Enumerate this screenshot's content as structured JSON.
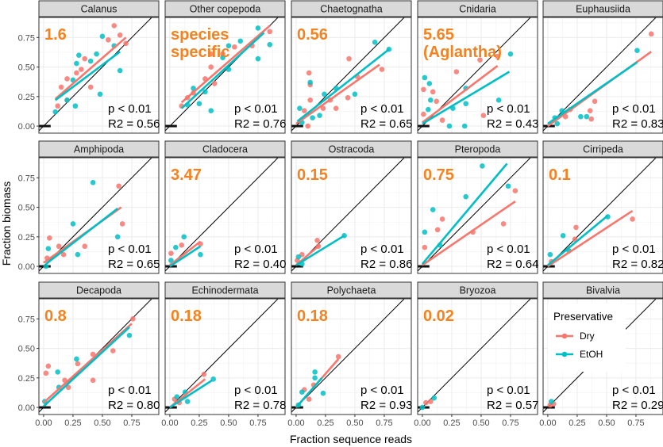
{
  "chart_data": {
    "type": "scatter",
    "xlabel": "Fraction sequence reads",
    "ylabel": "Fraction biomass",
    "xlim": [
      -0.04,
      0.98
    ],
    "ylim": [
      -0.06,
      0.92
    ],
    "xticks": [
      "0.00",
      "0.25",
      "0.50",
      "0.75"
    ],
    "yticks": [
      "0.00",
      "0.25",
      "0.50",
      "0.75"
    ],
    "xtick_values": [
      0,
      0.25,
      0.5,
      0.75
    ],
    "ytick_values": [
      0,
      0.25,
      0.5,
      0.75
    ],
    "grid": true,
    "reference_line": "y = x",
    "legend": {
      "title": "Preservative",
      "placement": "inside Bivalvia panel",
      "entries": [
        "Dry",
        "EtOH"
      ]
    },
    "colors": {
      "Dry": "#f8766d",
      "EtOH": "#00bfc4",
      "annotation": "#f5821f"
    },
    "panels": [
      {
        "name": "Calanus",
        "annotation": [
          "1.6"
        ],
        "p": "p < 0.01",
        "r2": "R2 = 0.56",
        "dry": [
          [
            0.6,
            0.85
          ],
          [
            0.65,
            0.77
          ],
          [
            0.55,
            0.73
          ],
          [
            0.7,
            0.7
          ],
          [
            0.35,
            0.57
          ],
          [
            0.32,
            0.48
          ],
          [
            0.2,
            0.4
          ],
          [
            0.28,
            0.45
          ],
          [
            0.4,
            0.33
          ],
          [
            0.15,
            0.33
          ],
          [
            0.2,
            0.22
          ],
          [
            0.12,
            0.17
          ]
        ],
        "etoh": [
          [
            0.5,
            0.76
          ],
          [
            0.6,
            0.68
          ],
          [
            0.45,
            0.61
          ],
          [
            0.3,
            0.6
          ],
          [
            0.4,
            0.55
          ],
          [
            0.28,
            0.53
          ],
          [
            0.25,
            0.39
          ],
          [
            0.65,
            0.47
          ],
          [
            0.48,
            0.27
          ],
          [
            0.27,
            0.17
          ],
          [
            0.1,
            0.12
          ],
          [
            0.2,
            0.22
          ]
        ],
        "dry_fit": [
          [
            0.1,
            0.23
          ],
          [
            0.7,
            0.75
          ]
        ],
        "etoh_fit": [
          [
            0.1,
            0.22
          ],
          [
            0.65,
            0.63
          ]
        ]
      },
      {
        "name": "Other copepoda",
        "annotation": [
          "species",
          "specific"
        ],
        "p": "p < 0.01",
        "r2": "R2 = 0.76",
        "dry": [
          [
            0.85,
            0.8
          ],
          [
            0.7,
            0.68
          ],
          [
            0.55,
            0.67
          ],
          [
            0.35,
            0.61
          ],
          [
            0.45,
            0.61
          ],
          [
            0.35,
            0.5
          ],
          [
            0.3,
            0.4
          ],
          [
            0.38,
            0.36
          ],
          [
            0.1,
            0.17
          ],
          [
            0.2,
            0.28
          ],
          [
            0.15,
            0.24
          ]
        ],
        "etoh": [
          [
            0.75,
            0.83
          ],
          [
            0.85,
            0.69
          ],
          [
            0.6,
            0.72
          ],
          [
            0.5,
            0.68
          ],
          [
            0.45,
            0.58
          ],
          [
            0.5,
            0.48
          ],
          [
            0.75,
            0.57
          ],
          [
            0.2,
            0.32
          ],
          [
            0.3,
            0.29
          ],
          [
            0.25,
            0.19
          ],
          [
            0.35,
            0.13
          ],
          [
            0.15,
            0.18
          ]
        ],
        "dry_fit": [
          [
            0.1,
            0.2
          ],
          [
            0.85,
            0.85
          ]
        ],
        "etoh_fit": [
          [
            0.1,
            0.15
          ],
          [
            0.8,
            0.79
          ]
        ]
      },
      {
        "name": "Chaetognatha",
        "annotation": [
          "0.56"
        ],
        "p": "p < 0.01",
        "r2": "R2 = 0.65",
        "dry": [
          [
            0.45,
            0.57
          ],
          [
            0.11,
            0.45
          ],
          [
            0.12,
            0.35
          ],
          [
            0.52,
            0.42
          ],
          [
            0.73,
            0.48
          ],
          [
            0.44,
            0.24
          ],
          [
            0.12,
            0.22
          ],
          [
            0.29,
            0.22
          ],
          [
            0.23,
            0.15
          ],
          [
            0.34,
            0.15
          ],
          [
            0.1,
            0.0
          ],
          [
            0.07,
            0.13
          ]
        ],
        "etoh": [
          [
            0.67,
            0.71
          ],
          [
            0.79,
            0.65
          ],
          [
            0.12,
            0.37
          ],
          [
            0.24,
            0.27
          ],
          [
            0.34,
            0.32
          ],
          [
            0.5,
            0.27
          ],
          [
            0.2,
            0.09
          ],
          [
            0.14,
            0.07
          ],
          [
            0.03,
            0.15
          ],
          [
            0.05,
            0.03
          ]
        ],
        "dry_fit": [
          [
            0.0,
            0.02
          ],
          [
            0.71,
            0.52
          ]
        ],
        "etoh_fit": [
          [
            0.01,
            0.04
          ],
          [
            0.79,
            0.65
          ]
        ]
      },
      {
        "name": "Cnidaria",
        "annotation": [
          "5.65",
          "(Aglantha)"
        ],
        "p": "p < 0.01",
        "r2": "R2 = 0.43",
        "dry": [
          [
            0.64,
            0.59
          ],
          [
            0.49,
            0.56
          ],
          [
            0.29,
            0.46
          ],
          [
            0.01,
            0.31
          ],
          [
            0.09,
            0.29
          ],
          [
            0.12,
            0.21
          ],
          [
            0.52,
            0.09
          ],
          [
            0.17,
            0.05
          ],
          [
            0.01,
            0.1
          ]
        ],
        "etoh": [
          [
            0.75,
            0.61
          ],
          [
            0.02,
            0.41
          ],
          [
            0.06,
            0.36
          ],
          [
            0.37,
            0.32
          ],
          [
            0.07,
            0.22
          ],
          [
            0.37,
            0.19
          ],
          [
            0.65,
            0.22
          ],
          [
            0.26,
            0.15
          ],
          [
            0.05,
            0.14
          ],
          [
            0.23,
            0.0
          ],
          [
            0.36,
            0.0
          ]
        ],
        "dry_fit": [
          [
            0.0,
            0.03
          ],
          [
            0.64,
            0.51
          ]
        ],
        "etoh_fit": [
          [
            0.0,
            0.02
          ],
          [
            0.74,
            0.46
          ]
        ]
      },
      {
        "name": "Euphausiida",
        "annotation": [],
        "p": "p < 0.01",
        "r2": "R2 = 0.83",
        "dry": [
          [
            0.88,
            0.78
          ],
          [
            0.4,
            0.21
          ],
          [
            0.36,
            0.13
          ],
          [
            0.37,
            0.06
          ],
          [
            0.19,
            0.14
          ],
          [
            0.15,
            0.08
          ]
        ],
        "etoh": [
          [
            0.76,
            0.64
          ],
          [
            0.28,
            0.08
          ],
          [
            0.33,
            0.08
          ],
          [
            0.12,
            0.13
          ],
          [
            0.06,
            0.07
          ],
          [
            0.08,
            0.02
          ]
        ],
        "dry_fit": [
          [
            0.0,
            0.0
          ],
          [
            0.88,
            0.63
          ]
        ],
        "etoh_fit": [
          [
            0.0,
            0.02
          ],
          [
            0.76,
            0.54
          ]
        ]
      },
      {
        "name": "Amphipoda",
        "annotation": [],
        "p": "p < 0.01",
        "r2": "R2 = 0.65",
        "dry": [
          [
            0.64,
            0.68
          ],
          [
            0.67,
            0.36
          ],
          [
            0.05,
            0.24
          ],
          [
            0.35,
            0.17
          ],
          [
            0.13,
            0.17
          ],
          [
            0.17,
            0.1
          ],
          [
            0.03,
            0.07
          ]
        ],
        "etoh": [
          [
            0.42,
            0.71
          ],
          [
            0.25,
            0.36
          ],
          [
            0.63,
            0.25
          ],
          [
            0.04,
            0.15
          ],
          [
            0.29,
            0.1
          ],
          [
            0.02,
            0.0
          ]
        ],
        "dry_fit": [
          [
            0.0,
            0.03
          ],
          [
            0.66,
            0.5
          ]
        ],
        "etoh_fit": [
          [
            0.02,
            0.02
          ],
          [
            0.63,
            0.49
          ]
        ]
      },
      {
        "name": "Cladocera",
        "annotation": [
          "3.47"
        ],
        "p": "p < 0.01",
        "r2": "R2 = 0.40",
        "dry": [
          [
            0.1,
            0.18
          ],
          [
            0.26,
            0.19
          ],
          [
            0.01,
            0.11
          ]
        ],
        "etoh": [
          [
            0.12,
            0.25
          ],
          [
            0.05,
            0.16
          ],
          [
            0.26,
            0.1
          ],
          [
            0.01,
            0.05
          ]
        ],
        "dry_fit": [
          [
            0.0,
            0.01
          ],
          [
            0.26,
            0.21
          ]
        ],
        "etoh_fit": [
          [
            0.0,
            0.0
          ],
          [
            0.26,
            0.17
          ]
        ]
      },
      {
        "name": "Ostracoda",
        "annotation": [
          "0.15"
        ],
        "p": "p < 0.01",
        "r2": "R2 = 0.86",
        "dry": [
          [
            0.18,
            0.22
          ],
          [
            0.19,
            0.17
          ],
          [
            0.05,
            0.1
          ],
          [
            0.01,
            0.05
          ]
        ],
        "etoh": [
          [
            0.41,
            0.26
          ],
          [
            0.02,
            0.08
          ],
          [
            0.05,
            0.02
          ]
        ],
        "dry_fit": [
          [
            0.0,
            0.01
          ],
          [
            0.2,
            0.18
          ]
        ],
        "etoh_fit": [
          [
            0.0,
            0.01
          ],
          [
            0.41,
            0.26
          ]
        ]
      },
      {
        "name": "Pteropoda",
        "annotation": [
          "0.75"
        ],
        "p": "p < 0.01",
        "r2": "R2 = 0.64",
        "dry": [
          [
            0.79,
            0.64
          ],
          [
            0.17,
            0.4
          ],
          [
            0.13,
            0.31
          ],
          [
            0.43,
            0.29
          ],
          [
            0.69,
            0.36
          ],
          [
            0.02,
            0.16
          ]
        ],
        "etoh": [
          [
            0.51,
            0.85
          ],
          [
            0.73,
            0.68
          ],
          [
            0.37,
            0.59
          ],
          [
            0.09,
            0.48
          ],
          [
            0.02,
            0.29
          ],
          [
            0.15,
            0.18
          ]
        ],
        "dry_fit": [
          [
            0.0,
            0.01
          ],
          [
            0.79,
            0.55
          ]
        ],
        "etoh_fit": [
          [
            0.0,
            0.02
          ],
          [
            0.72,
            0.87
          ]
        ]
      },
      {
        "name": "Cirripeda",
        "annotation": [
          "0.1"
        ],
        "p": "p < 0.01",
        "r2": "R2 = 0.82",
        "dry": [
          [
            0.72,
            0.4
          ],
          [
            0.24,
            0.33
          ],
          [
            0.23,
            0.23
          ],
          [
            0.03,
            0.04
          ]
        ],
        "etoh": [
          [
            0.51,
            0.42
          ],
          [
            0.13,
            0.26
          ],
          [
            0.18,
            0.13
          ],
          [
            0.02,
            0.1
          ]
        ],
        "dry_fit": [
          [
            0.0,
            0.0
          ],
          [
            0.72,
            0.47
          ]
        ],
        "etoh_fit": [
          [
            0.0,
            0.01
          ],
          [
            0.51,
            0.43
          ]
        ]
      },
      {
        "name": "Decapoda",
        "annotation": [
          "0.8"
        ],
        "p": "p < 0.01",
        "r2": "R2 = 0.80",
        "dry": [
          [
            0.76,
            0.75
          ],
          [
            0.42,
            0.45
          ],
          [
            0.59,
            0.48
          ],
          [
            0.29,
            0.37
          ],
          [
            0.04,
            0.35
          ],
          [
            0.02,
            0.29
          ],
          [
            0.42,
            0.23
          ],
          [
            0.18,
            0.23
          ],
          [
            0.21,
            0.17
          ]
        ],
        "etoh": [
          [
            0.73,
            0.61
          ],
          [
            0.28,
            0.41
          ],
          [
            0.12,
            0.3
          ],
          [
            0.13,
            0.17
          ],
          [
            0.01,
            0.05
          ]
        ],
        "dry_fit": [
          [
            0.0,
            0.04
          ],
          [
            0.75,
            0.71
          ]
        ],
        "etoh_fit": [
          [
            0.0,
            0.01
          ],
          [
            0.73,
            0.68
          ]
        ]
      },
      {
        "name": "Echinodermata",
        "annotation": [
          "0.18"
        ],
        "p": "p < 0.01",
        "r2": "R2 = 0.78",
        "dry": [
          [
            0.29,
            0.28
          ],
          [
            0.04,
            0.07
          ],
          [
            0.08,
            0.04
          ]
        ],
        "etoh": [
          [
            0.37,
            0.24
          ],
          [
            0.13,
            0.13
          ],
          [
            0.15,
            0.05
          ],
          [
            0.06,
            0.09
          ]
        ],
        "dry_fit": [
          [
            0.0,
            0.0
          ],
          [
            0.3,
            0.24
          ]
        ],
        "etoh_fit": [
          [
            0.0,
            0.0
          ],
          [
            0.36,
            0.23
          ]
        ]
      },
      {
        "name": "Polychaeta",
        "annotation": [
          "0.18"
        ],
        "p": "p < 0.01",
        "r2": "R2 = 0.93",
        "dry": [
          [
            0.36,
            0.43
          ],
          [
            0.07,
            0.15
          ],
          [
            0.15,
            0.19
          ],
          [
            0.11,
            0.07
          ]
        ],
        "etoh": [
          [
            0.16,
            0.3
          ],
          [
            0.16,
            0.25
          ],
          [
            0.23,
            0.12
          ],
          [
            0.05,
            0.13
          ],
          [
            0.02,
            0.02
          ]
        ],
        "dry_fit": [
          [
            0.0,
            0.0
          ],
          [
            0.36,
            0.41
          ]
        ],
        "etoh_fit": [
          [
            0.0,
            0.0
          ],
          [
            0.22,
            0.25
          ]
        ]
      },
      {
        "name": "Bryozoa",
        "annotation": [
          "0.02"
        ],
        "p": "p < 0.01",
        "r2": "R2 = 0.57",
        "dry": [
          [
            0.07,
            0.05
          ],
          [
            0.03,
            0.04
          ]
        ],
        "etoh": [
          [
            0.1,
            0.08
          ],
          [
            0.0,
            0.0
          ]
        ],
        "dry_fit": null,
        "etoh_fit": null
      },
      {
        "name": "Bivalvia",
        "annotation": [],
        "p": "p < 0.01",
        "r2": "R2 = 0.29",
        "dry": [
          [
            0.05,
            0.03
          ],
          [
            0.02,
            0.02
          ]
        ],
        "etoh": [
          [
            0.03,
            0.05
          ]
        ],
        "dry_fit": null,
        "etoh_fit": null
      }
    ]
  }
}
